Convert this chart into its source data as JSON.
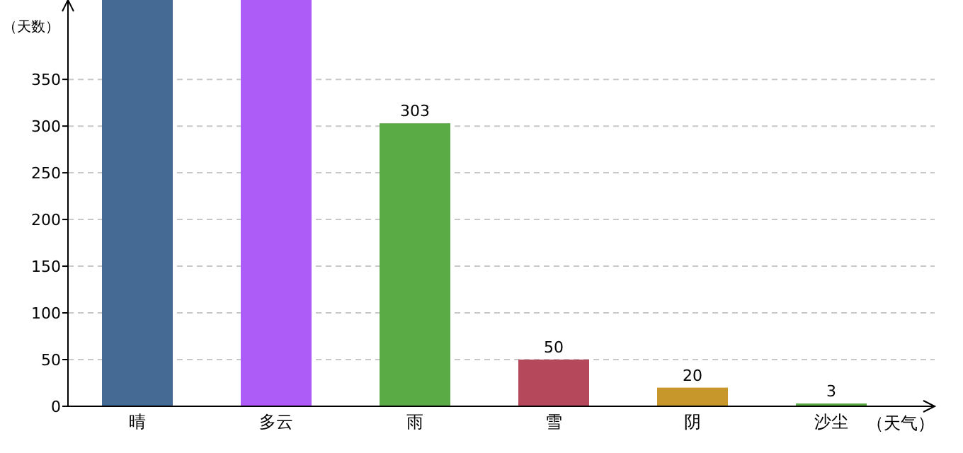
{
  "chart_data": {
    "type": "bar",
    "xlabel": "（天气）",
    "ylabel": "（天数）",
    "categories": [
      "晴",
      "多云",
      "雨",
      "雪",
      "阴",
      "沙尘"
    ],
    "values": [
      435,
      435,
      303,
      50,
      20,
      3
    ],
    "colors": [
      "#456a94",
      "#ad5cf8",
      "#5aab45",
      "#b5485a",
      "#c8972c",
      "#5aab45"
    ],
    "value_labels": [
      null,
      null,
      "303",
      "50",
      "20",
      "3"
    ],
    "ylim": [
      0,
      435
    ],
    "yticks": [
      0,
      50,
      100,
      150,
      200,
      250,
      300,
      350
    ],
    "grid": "y"
  }
}
